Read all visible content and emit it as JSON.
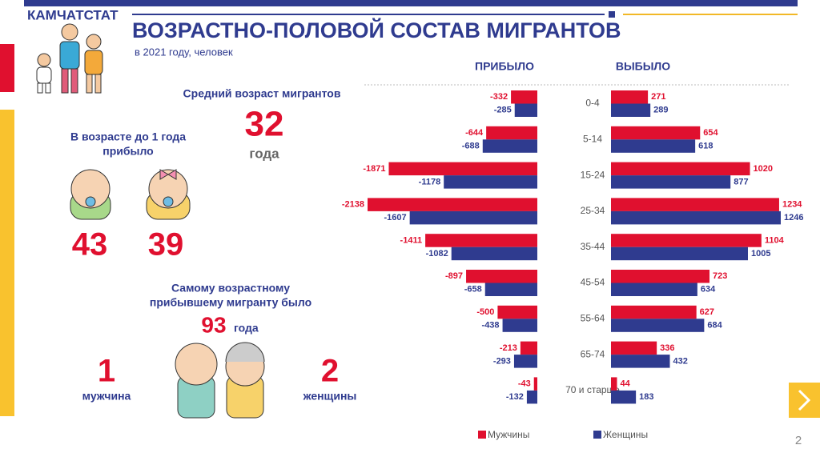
{
  "header": {
    "region": "КАМЧАТСТАТ",
    "title": "ВОЗРАСТНО-ПОЛОВОЙ СОСТАВ МИГРАНТОВ",
    "subtitle": "в 2021 году, человек"
  },
  "stats": {
    "avg_label": "Средний возраст мигрантов",
    "avg_value": 32,
    "avg_unit": "года",
    "infant_label_1": "В возрасте до 1 года",
    "infant_label_2": "прибыло",
    "infant_boys": 43,
    "infant_girls": 39,
    "oldest_label_1": "Самому возрастному",
    "oldest_label_2": "прибывшему мигранту было",
    "oldest_age": 93,
    "oldest_unit": "года",
    "men_count": 1,
    "men_label": "мужчина",
    "women_count": 2,
    "women_label": "женщины"
  },
  "page_number": 2,
  "chart_data": {
    "type": "bar",
    "orientation": "horizontal",
    "categories": [
      "0-4",
      "5-14",
      "15-24",
      "25-34",
      "35-44",
      "45-54",
      "55-64",
      "65-74",
      "70 и старше"
    ],
    "legend": [
      {
        "name": "Мужчины",
        "color": "#e0102f"
      },
      {
        "name": "Женщины",
        "color": "#2f3b8f"
      }
    ],
    "panels": [
      {
        "title": "ПРИБЫЛО",
        "series": [
          {
            "values": [
              -332,
              -644,
              -1871,
              -2138,
              -1411,
              -897,
              -500,
              -213,
              -43
            ]
          },
          {
            "values": [
              -285,
              -688,
              -1178,
              -1607,
              -1082,
              -658,
              -438,
              -293,
              -132
            ]
          }
        ]
      },
      {
        "title": "ВЫБЫЛО",
        "series": [
          {
            "values": [
              271,
              654,
              1020,
              1234,
              1104,
              723,
              627,
              336,
              44
            ]
          },
          {
            "values": [
              289,
              618,
              877,
              1246,
              1005,
              634,
              684,
              432,
              183
            ]
          }
        ]
      }
    ]
  }
}
